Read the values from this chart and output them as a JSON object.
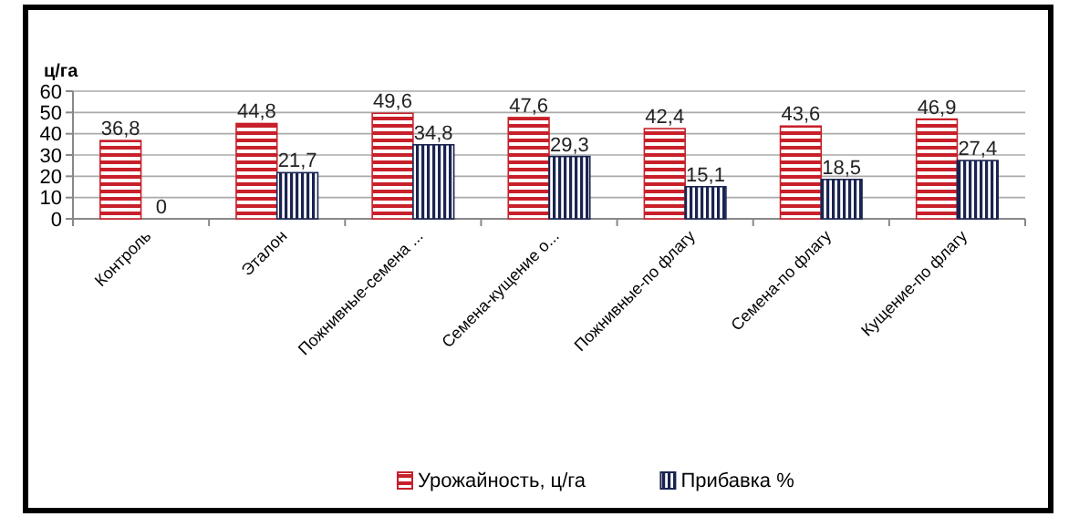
{
  "chart_data": {
    "type": "bar",
    "ylabel": "ц/га",
    "categories": [
      "Контроль",
      "Эталон",
      "Пожнивные-семена ...",
      "Семена-кущение о...",
      "Пожнивные-по флагу",
      "Семена-по флагу",
      "Кущение-по флагу"
    ],
    "series": [
      {
        "name": "Урожайность, ц/га",
        "color": "#c8202a",
        "values": [
          36.8,
          44.8,
          49.6,
          47.6,
          42.4,
          43.6,
          46.9
        ],
        "value_labels": [
          "36,8",
          "44,8",
          "49,6",
          "47,6",
          "42,4",
          "43,6",
          "46,9"
        ]
      },
      {
        "name": "Прибавка %",
        "color": "#1a2450",
        "values": [
          0,
          21.7,
          34.8,
          29.3,
          15.1,
          18.5,
          27.4
        ],
        "value_labels": [
          "0",
          "21,7",
          "34,8",
          "29,3",
          "15,1",
          "18,5",
          "27,4"
        ]
      }
    ],
    "ylim": [
      0,
      60
    ],
    "yticks": [
      0,
      10,
      20,
      30,
      40,
      50,
      60
    ],
    "grid": "y",
    "legend": "bottom"
  }
}
